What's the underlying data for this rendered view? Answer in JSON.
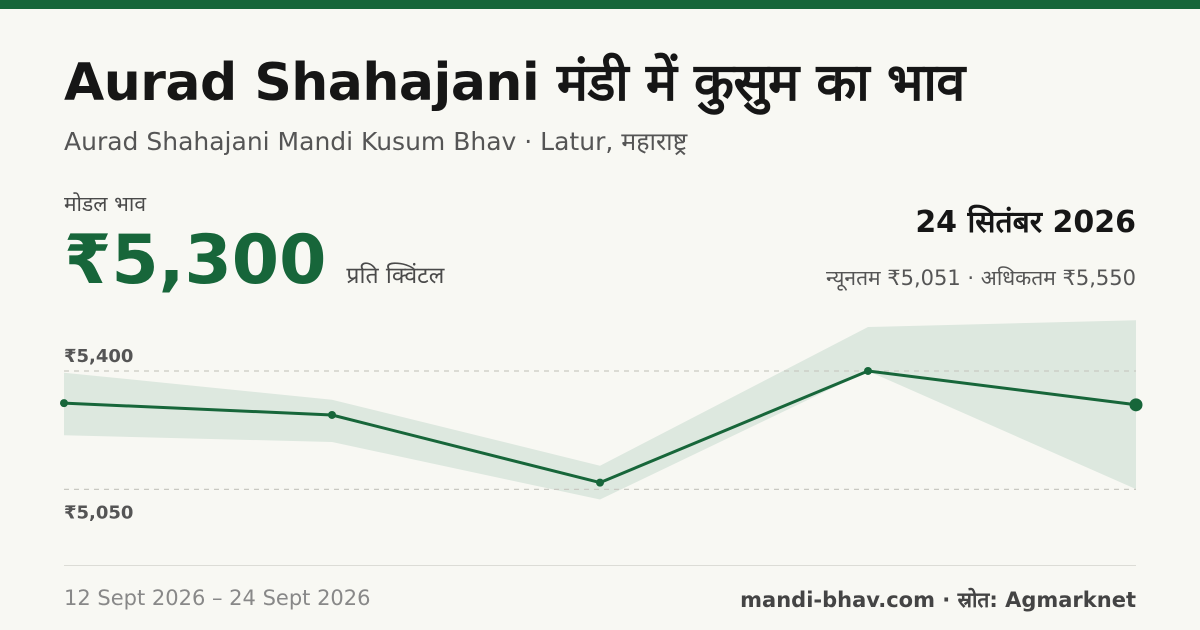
{
  "header": {
    "title": "Aurad Shahajani मंडी में कुसुम का भाव",
    "subtitle": "Aurad Shahajani Mandi Kusum Bhav · Latur, महाराष्ट्र"
  },
  "price_panel": {
    "label": "मोडल भाव",
    "price": "₹5,300",
    "unit": "प्रति क्विंटल",
    "date": "24 सितंबर 2026",
    "minmax": "न्यूनतम ₹5,051 · अधिकतम ₹5,550"
  },
  "footer": {
    "date_range": "12 Sept 2026 – 24 Sept 2026",
    "source": "mandi-bhav.com · स्रोत: Agmarknet"
  },
  "colors": {
    "accent": "#17663a",
    "band": "#dde8df",
    "gridline": "#c9c9c2"
  },
  "chart_data": {
    "type": "line",
    "y_tick_labels": [
      "₹5,400",
      "₹5,050"
    ],
    "y_ticks": [
      5400,
      5050
    ],
    "ylim": [
      4995,
      5530
    ],
    "grid": true,
    "series": [
      {
        "values": [
          5305,
          5270,
          5070,
          5400,
          5300
        ],
        "band_min": [
          5210,
          5190,
          5020,
          5400,
          5051
        ],
        "band_max": [
          5395,
          5315,
          5120,
          5530,
          5550
        ]
      }
    ]
  }
}
